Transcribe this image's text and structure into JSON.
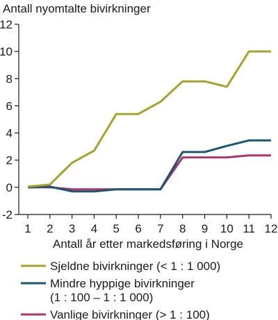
{
  "chart_data": {
    "type": "line",
    "ylabel": "Antall nyomtalte bivirkninger",
    "xlabel": "Antall år etter markedsføring i Norge",
    "x": [
      1,
      2,
      3,
      4,
      5,
      6,
      7,
      8,
      9,
      10,
      11,
      12
    ],
    "xlim": [
      1,
      12
    ],
    "ylim": [
      -2,
      12
    ],
    "yticks": [
      -2,
      0,
      2,
      4,
      6,
      8,
      10,
      12
    ],
    "yticklabels": [
      "-2",
      "0",
      "2",
      "4",
      "6",
      "8",
      "10",
      "12"
    ],
    "xticklabels": [
      "1",
      "2",
      "3",
      "4",
      "5",
      "6",
      "7",
      "8",
      "9",
      "10",
      "11",
      "12"
    ],
    "grid": false,
    "legend_position": "bottom",
    "series": [
      {
        "name": "Sjeldne bivirkninger (< 1 : 1 000)",
        "color": "#a4a42a",
        "values": [
          0.05,
          0.2,
          1.8,
          2.7,
          5.4,
          5.4,
          6.3,
          7.8,
          7.8,
          7.4,
          10.0,
          10.0
        ]
      },
      {
        "name": "Mindre hyppige bivirkninger",
        "name_line2": "(1 : 100 – 1 : 1 000)",
        "color": "#1a5670",
        "values": [
          0.0,
          0.05,
          -0.3,
          -0.3,
          -0.15,
          -0.15,
          -0.15,
          2.6,
          2.6,
          3.05,
          3.45,
          3.45
        ]
      },
      {
        "name": "Vanlige bivirkninger (> 1 : 100)",
        "color": "#b1326a",
        "values": [
          0.0,
          0.0,
          -0.15,
          -0.15,
          -0.15,
          -0.15,
          -0.15,
          2.2,
          2.2,
          2.2,
          2.35,
          2.35
        ]
      }
    ]
  }
}
